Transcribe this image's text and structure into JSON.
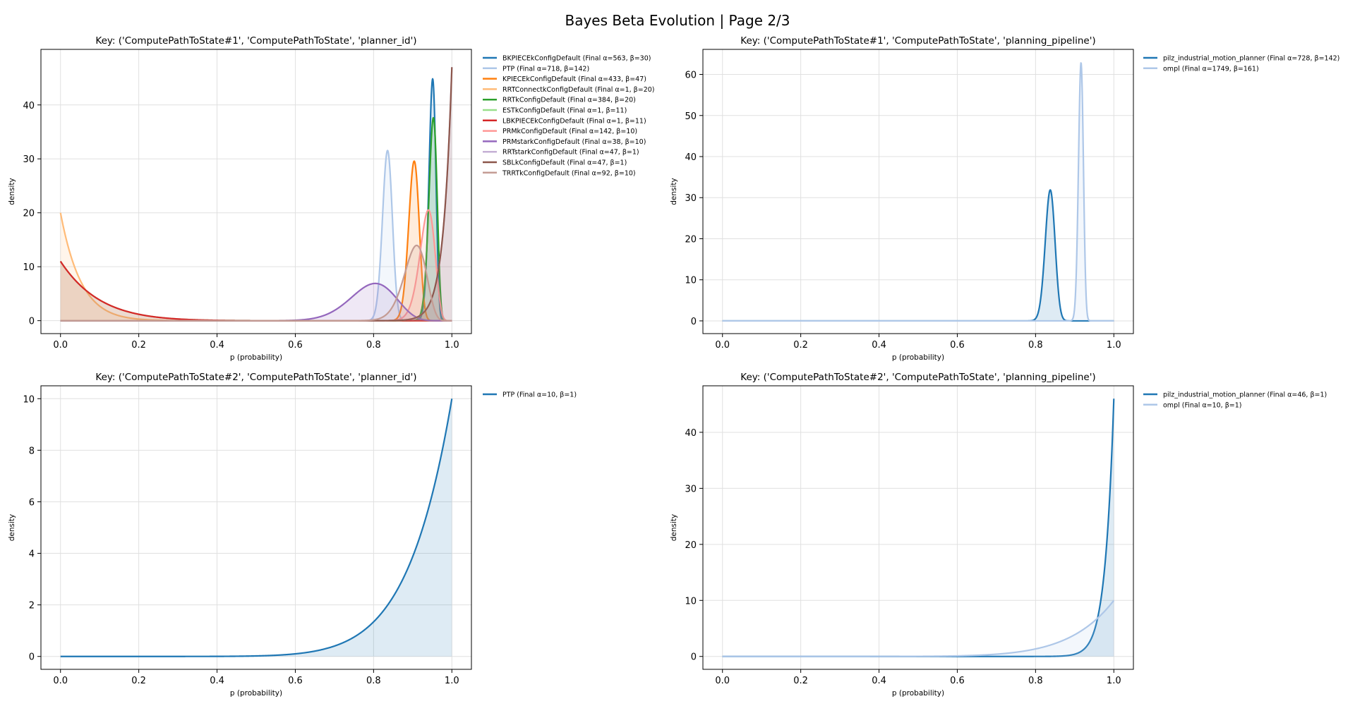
{
  "figure": {
    "title": "Bayes Beta Evolution | Page 2/3"
  },
  "colors": {
    "tab20": [
      "#1f77b4",
      "#aec7e8",
      "#ff7f0e",
      "#ffbb78",
      "#2ca02c",
      "#98df8a",
      "#d62728",
      "#ff9896",
      "#9467bd",
      "#c5b0d5",
      "#8c564b",
      "#c49c94"
    ],
    "grid": "#e0e0e0",
    "axis": "#000000"
  },
  "chart_data": [
    {
      "type": "line",
      "title": "Key: ('ComputePathToState#1', 'ComputePathToState', 'planner_id')",
      "xlabel": "p (probability)",
      "ylabel": "density",
      "xlim": [
        -0.05,
        1.05
      ],
      "ylim": [
        -2.4,
        50.3
      ],
      "xticks": [
        0,
        0.2,
        0.4,
        0.6,
        0.8,
        1
      ],
      "xtick_labels": [
        "0.0",
        "0.2",
        "0.4",
        "0.6",
        "0.8",
        "1.0"
      ],
      "yticks": [
        0,
        10,
        20,
        30,
        40
      ],
      "ytick_labels": [
        "0",
        "10",
        "20",
        "30",
        "40"
      ],
      "grid": true,
      "legend_position": "outside-right",
      "series": [
        {
          "name": "BKPIECEkConfigDefault (Final α=563, β=30)",
          "alpha": 563,
          "beta": 30,
          "color": "#1f77b4"
        },
        {
          "name": "PTP (Final α=718, β=142)",
          "alpha": 718,
          "beta": 142,
          "color": "#aec7e8"
        },
        {
          "name": "KPIECEkConfigDefault (Final α=433, β=47)",
          "alpha": 433,
          "beta": 47,
          "color": "#ff7f0e"
        },
        {
          "name": "RRTConnectkConfigDefault (Final α=1, β=20)",
          "alpha": 1,
          "beta": 20,
          "color": "#ffbb78"
        },
        {
          "name": "RRTkConfigDefault (Final α=384, β=20)",
          "alpha": 384,
          "beta": 20,
          "color": "#2ca02c"
        },
        {
          "name": "ESTkConfigDefault (Final α=1, β=11)",
          "alpha": 1,
          "beta": 11,
          "color": "#98df8a"
        },
        {
          "name": "LBKPIECEkConfigDefault (Final α=1, β=11)",
          "alpha": 1,
          "beta": 11,
          "color": "#d62728"
        },
        {
          "name": "PRMkConfigDefault (Final α=142, β=10)",
          "alpha": 142,
          "beta": 10,
          "color": "#ff9896"
        },
        {
          "name": "PRMstarkConfigDefault (Final α=38, β=10)",
          "alpha": 38,
          "beta": 10,
          "color": "#9467bd"
        },
        {
          "name": "RRTstarkConfigDefault (Final α=47, β=1)",
          "alpha": 47,
          "beta": 1,
          "color": "#c5b0d5"
        },
        {
          "name": "SBLkConfigDefault (Final α=47, β=1)",
          "alpha": 47,
          "beta": 1,
          "color": "#8c564b"
        },
        {
          "name": "TRRTkConfigDefault (Final α=92, β=10)",
          "alpha": 92,
          "beta": 10,
          "color": "#c49c94"
        }
      ]
    },
    {
      "type": "line",
      "title": "Key: ('ComputePathToState#1', 'ComputePathToState', 'planning_pipeline')",
      "xlabel": "p (probability)",
      "ylabel": "density",
      "xlim": [
        -0.05,
        1.05
      ],
      "ylim": [
        -3.1,
        66.1
      ],
      "xticks": [
        0,
        0.2,
        0.4,
        0.6,
        0.8,
        1
      ],
      "xtick_labels": [
        "0.0",
        "0.2",
        "0.4",
        "0.6",
        "0.8",
        "1.0"
      ],
      "yticks": [
        0,
        10,
        20,
        30,
        40,
        50,
        60
      ],
      "ytick_labels": [
        "0",
        "10",
        "20",
        "30",
        "40",
        "50",
        "60"
      ],
      "grid": true,
      "legend_position": "outside-right",
      "series": [
        {
          "name": "pilz_industrial_motion_planner (Final α=728, β=142)",
          "alpha": 728,
          "beta": 142,
          "color": "#1f77b4"
        },
        {
          "name": "ompl (Final α=1749, β=161)",
          "alpha": 1749,
          "beta": 161,
          "color": "#aec7e8"
        }
      ]
    },
    {
      "type": "line",
      "title": "Key: ('ComputePathToState#2', 'ComputePathToState', 'planner_id')",
      "xlabel": "p (probability)",
      "ylabel": "density",
      "xlim": [
        -0.05,
        1.05
      ],
      "ylim": [
        -0.5,
        10.5
      ],
      "xticks": [
        0,
        0.2,
        0.4,
        0.6,
        0.8,
        1
      ],
      "xtick_labels": [
        "0.0",
        "0.2",
        "0.4",
        "0.6",
        "0.8",
        "1.0"
      ],
      "yticks": [
        0,
        2,
        4,
        6,
        8,
        10
      ],
      "ytick_labels": [
        "0",
        "2",
        "4",
        "6",
        "8",
        "10"
      ],
      "grid": true,
      "legend_position": "outside-right",
      "series": [
        {
          "name": "PTP (Final α=10, β=1)",
          "alpha": 10,
          "beta": 1,
          "color": "#1f77b4"
        }
      ]
    },
    {
      "type": "line",
      "title": "Key: ('ComputePathToState#2', 'ComputePathToState', 'planning_pipeline')",
      "xlabel": "p (probability)",
      "ylabel": "density",
      "xlim": [
        -0.05,
        1.05
      ],
      "ylim": [
        -2.3,
        48.3
      ],
      "xticks": [
        0,
        0.2,
        0.4,
        0.6,
        0.8,
        1
      ],
      "xtick_labels": [
        "0.0",
        "0.2",
        "0.4",
        "0.6",
        "0.8",
        "1.0"
      ],
      "yticks": [
        0,
        10,
        20,
        30,
        40
      ],
      "ytick_labels": [
        "0",
        "10",
        "20",
        "30",
        "40"
      ],
      "grid": true,
      "legend_position": "outside-right",
      "series": [
        {
          "name": "pilz_industrial_motion_planner (Final α=46, β=1)",
          "alpha": 46,
          "beta": 1,
          "color": "#1f77b4"
        },
        {
          "name": "ompl (Final α=10, β=1)",
          "alpha": 10,
          "beta": 1,
          "color": "#aec7e8"
        }
      ]
    }
  ]
}
